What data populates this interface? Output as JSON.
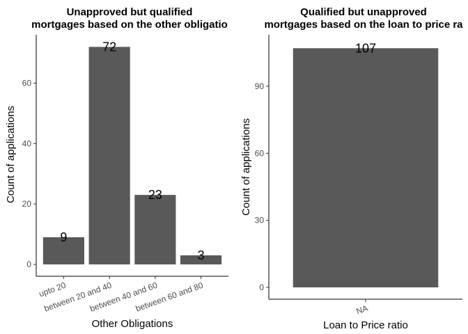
{
  "chart_data": [
    {
      "type": "bar",
      "title_lines": [
        "Unapproved but qualified",
        "mortgages based on the other obligatio"
      ],
      "xlabel": "Other Obligations",
      "ylabel": "Count of applications",
      "categories": [
        "upto 20",
        "between 20  and 40",
        "between 40  and 60",
        "between 60  and 80"
      ],
      "values": [
        9,
        72,
        23,
        3
      ],
      "data_labels": [
        "9",
        "72",
        "23",
        "3"
      ],
      "yticks": [
        0,
        20,
        40,
        60
      ],
      "ylim": [
        0,
        76
      ],
      "bar_color": "#595959",
      "grid": false
    },
    {
      "type": "bar",
      "title_lines": [
        "Qualified but unapproved",
        "mortgages based on the loan to price ra"
      ],
      "xlabel": "Loan to Price ratio",
      "ylabel": "Count of applications",
      "categories": [
        "NA"
      ],
      "values": [
        107
      ],
      "data_labels": [
        "107"
      ],
      "yticks": [
        0,
        30,
        60,
        90
      ],
      "ylim": [
        0,
        113
      ],
      "bar_color": "#595959",
      "grid": false
    }
  ]
}
